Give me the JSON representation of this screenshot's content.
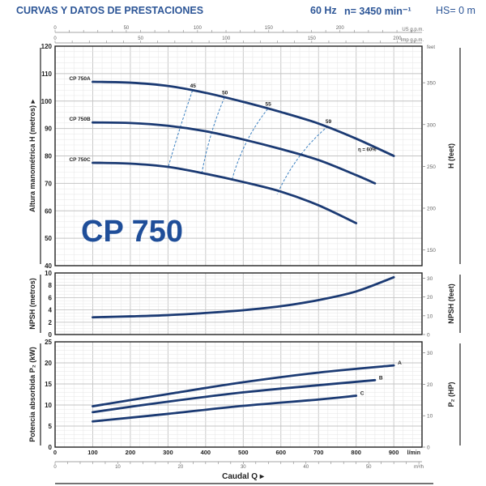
{
  "header": {
    "title": "CURVAS Y DATOS DE PRESTACIONES",
    "frequency": "60 Hz",
    "speed": "n= 3450 min⁻¹",
    "hs": "HS= 0 m"
  },
  "model_label": "CP 750",
  "colors": {
    "curve": "#1b3a73",
    "title": "#2d5697",
    "model": "#1f4e99",
    "efficiency": "#3a7fc0"
  },
  "chart_data": [
    {
      "type": "line",
      "title": "Altura manométrica H",
      "ylabel": "Altura manométrica H (metros)",
      "ylabel_right": "H (feet)",
      "right_unit": "feet",
      "xlabel": "Caudal Q",
      "xlim": [
        0,
        975
      ],
      "ylim": [
        40,
        120
      ],
      "yticks": [
        40,
        50,
        60,
        70,
        80,
        90,
        100,
        110,
        120
      ],
      "yticks_right": [
        150,
        200,
        250,
        300,
        350
      ],
      "series": [
        {
          "name": "CP 750A",
          "x": [
            100,
            200,
            300,
            400,
            500,
            600,
            700,
            800,
            900
          ],
          "y": [
            107,
            106.7,
            105.5,
            103,
            99.7,
            96,
            91.8,
            86.3,
            80
          ]
        },
        {
          "name": "CP 750B",
          "x": [
            100,
            200,
            300,
            400,
            500,
            600,
            700,
            800,
            850
          ],
          "y": [
            92.2,
            92,
            91,
            89,
            86,
            82.5,
            78.5,
            73,
            70
          ]
        },
        {
          "name": "CP 750C",
          "x": [
            100,
            200,
            300,
            400,
            500,
            600,
            700,
            800
          ],
          "y": [
            77.5,
            77.2,
            76,
            73.5,
            70.5,
            67,
            62,
            55.5
          ]
        }
      ],
      "efficiency_lines": [
        {
          "label": "45",
          "x": [
            365,
            330,
            300
          ],
          "y": [
            103.8,
            90,
            75.6
          ]
        },
        {
          "label": "50",
          "x": [
            450,
            410,
            390
          ],
          "y": [
            101.3,
            88.5,
            73.8
          ]
        },
        {
          "label": "55",
          "x": [
            565,
            500,
            470
          ],
          "y": [
            97.1,
            86,
            71.3
          ]
        },
        {
          "label": "59",
          "x": [
            725,
            640,
            590
          ],
          "y": [
            90.8,
            81,
            66
          ]
        }
      ],
      "efficiency_end_label": "η = 60%"
    },
    {
      "type": "line",
      "ylabel": "NPSH (metros)",
      "ylabel_right": "NPSH (feet)",
      "xlim": [
        0,
        975
      ],
      "ylim": [
        0,
        10
      ],
      "yticks": [
        0,
        2,
        4,
        6,
        8,
        10
      ],
      "yticks_right": [
        0,
        10,
        20,
        30
      ],
      "series": [
        {
          "name": "NPSH",
          "x": [
            100,
            200,
            300,
            400,
            500,
            600,
            700,
            800,
            900
          ],
          "y": [
            2.8,
            2.95,
            3.15,
            3.5,
            3.95,
            4.6,
            5.6,
            7,
            9.3
          ]
        }
      ]
    },
    {
      "type": "line",
      "ylabel": "Potencia absorbida P₂ (kW)",
      "ylabel_right": "P₂ (HP)",
      "xlim": [
        0,
        975
      ],
      "ylim": [
        0,
        25
      ],
      "yticks": [
        0,
        5,
        10,
        15,
        20,
        25
      ],
      "yticks_right": [
        0,
        10,
        20,
        30
      ],
      "xticks": [
        0,
        100,
        200,
        300,
        400,
        500,
        600,
        700,
        800,
        900
      ],
      "x_unit": "l/min",
      "series": [
        {
          "name": "A",
          "x": [
            100,
            300,
            500,
            700,
            900
          ],
          "y": [
            9.7,
            12.6,
            15.4,
            17.7,
            19.4
          ]
        },
        {
          "name": "B",
          "x": [
            100,
            300,
            500,
            700,
            850
          ],
          "y": [
            8.3,
            10.8,
            13,
            14.7,
            15.9
          ]
        },
        {
          "name": "C",
          "x": [
            100,
            300,
            500,
            700,
            800
          ],
          "y": [
            6.1,
            7.9,
            9.8,
            11.3,
            12.2
          ]
        }
      ]
    }
  ],
  "secondary_axes": {
    "us_gpm": {
      "unit": "US g.p.m.",
      "ticks": [
        0,
        50,
        100,
        150,
        200
      ]
    },
    "imp_gpm": {
      "unit": "Imp g.p.m.",
      "ticks": [
        0,
        50,
        100,
        150,
        200
      ]
    },
    "m3h": {
      "unit": "m³/h",
      "ticks": [
        0,
        10,
        20,
        30,
        40,
        50
      ]
    }
  },
  "xlabel": "Caudal Q ▸"
}
